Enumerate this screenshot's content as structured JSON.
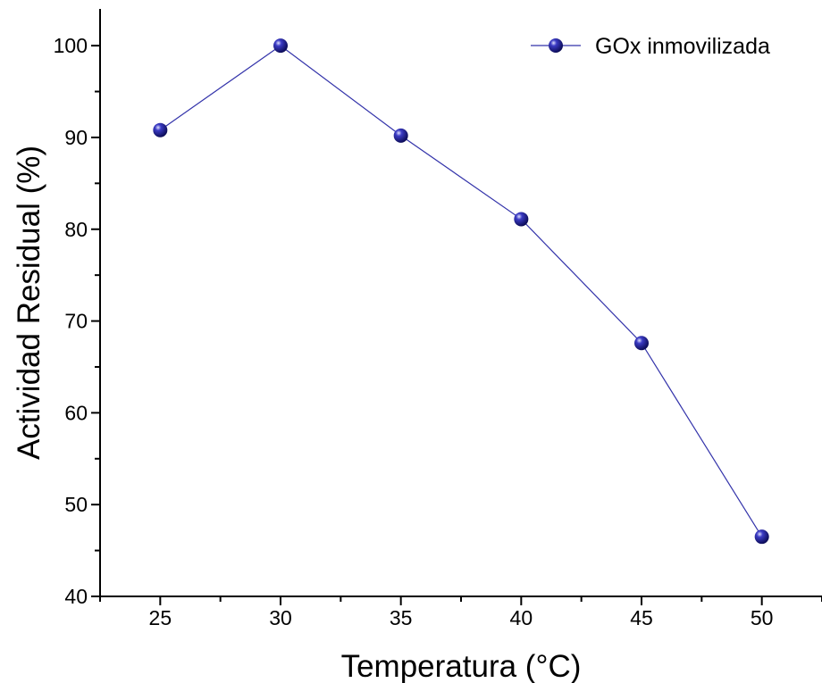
{
  "chart_data": {
    "type": "line",
    "xlabel": "Temperatura (°C)",
    "ylabel": "Actividad Residual (%)",
    "xlim": [
      22.5,
      52.5
    ],
    "ylim": [
      40,
      104
    ],
    "x_ticks": [
      25,
      30,
      35,
      40,
      45,
      50
    ],
    "y_ticks": [
      40,
      50,
      60,
      70,
      80,
      90,
      100
    ],
    "x_tick_labels": [
      "25",
      "30",
      "35",
      "40",
      "45",
      "50"
    ],
    "y_tick_labels": [
      "40",
      "50",
      "60",
      "70",
      "80",
      "90",
      "100"
    ],
    "legend_position": "top-right",
    "grid": false,
    "series": [
      {
        "name": "GOx inmovilizada",
        "color": "#1a1a8c",
        "marker": "sphere",
        "x": [
          25,
          30,
          35,
          40,
          45,
          50
        ],
        "y": [
          90.8,
          100,
          90.2,
          81.1,
          67.6,
          46.5
        ]
      }
    ]
  }
}
